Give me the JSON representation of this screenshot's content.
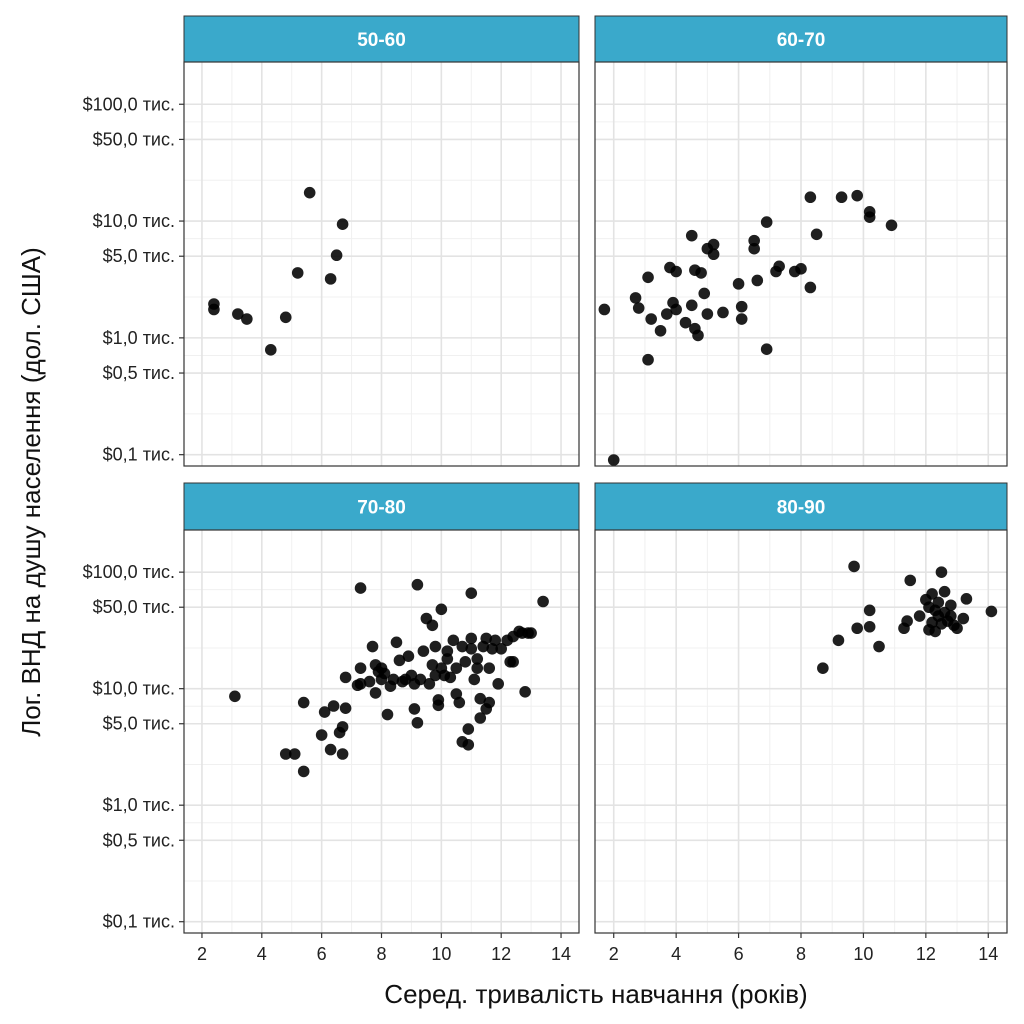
{
  "chart_data": {
    "type": "scatter",
    "xlabel": "Серед. тривалість навчання (років)",
    "ylabel": "Лог. ВНД на душу населення (дол. США)",
    "x_scale": "linear",
    "y_scale": "log10",
    "xlim": [
      1.4,
      14.6
    ],
    "ylim": [
      80,
      230000
    ],
    "x_ticks": [
      2,
      4,
      6,
      8,
      10,
      12,
      14
    ],
    "x_tick_labels": [
      "2",
      "4",
      "6",
      "8",
      "10",
      "12",
      "14"
    ],
    "y_ticks": [
      100,
      500,
      1000,
      5000,
      10000,
      50000,
      100000
    ],
    "y_tick_labels": [
      "$0,1 тис.",
      "$0,5 тис.",
      "$1,0 тис.",
      "$5,0 тис.",
      "$10,0 тис.",
      "$50,0 тис.",
      "$100,0 тис."
    ],
    "grid": true,
    "facets": [
      {
        "label": "50-60",
        "points": [
          [
            2.4,
            1950
          ],
          [
            2.4,
            1750
          ],
          [
            3.2,
            1600
          ],
          [
            3.5,
            1450
          ],
          [
            4.3,
            790
          ],
          [
            4.8,
            1500
          ],
          [
            5.2,
            3600
          ],
          [
            5.6,
            17500
          ],
          [
            6.3,
            3200
          ],
          [
            6.5,
            5100
          ],
          [
            6.7,
            9400
          ]
        ]
      },
      {
        "label": "60-70",
        "points": [
          [
            1.7,
            1750
          ],
          [
            2.0,
            90
          ],
          [
            2.7,
            2200
          ],
          [
            2.8,
            1800
          ],
          [
            3.1,
            3300
          ],
          [
            3.1,
            650
          ],
          [
            3.2,
            1450
          ],
          [
            3.5,
            1150
          ],
          [
            3.7,
            1600
          ],
          [
            3.8,
            4000
          ],
          [
            3.9,
            2000
          ],
          [
            4.0,
            1750
          ],
          [
            4.0,
            3700
          ],
          [
            4.3,
            1350
          ],
          [
            4.5,
            7500
          ],
          [
            4.5,
            1900
          ],
          [
            4.6,
            3800
          ],
          [
            4.6,
            1200
          ],
          [
            4.7,
            1050
          ],
          [
            4.8,
            3600
          ],
          [
            4.9,
            2400
          ],
          [
            5.0,
            1600
          ],
          [
            5.0,
            5800
          ],
          [
            5.2,
            6300
          ],
          [
            5.2,
            5200
          ],
          [
            5.5,
            1650
          ],
          [
            6.0,
            2900
          ],
          [
            6.1,
            1850
          ],
          [
            6.1,
            1450
          ],
          [
            6.5,
            5800
          ],
          [
            6.5,
            6800
          ],
          [
            6.6,
            3100
          ],
          [
            6.9,
            800
          ],
          [
            6.9,
            9800
          ],
          [
            7.2,
            3700
          ],
          [
            7.3,
            4100
          ],
          [
            7.8,
            3700
          ],
          [
            8.0,
            3900
          ],
          [
            8.3,
            2700
          ],
          [
            8.3,
            16000
          ],
          [
            8.5,
            7700
          ],
          [
            9.3,
            16000
          ],
          [
            9.8,
            16500
          ],
          [
            10.2,
            12000
          ],
          [
            10.2,
            10800
          ],
          [
            10.9,
            9200
          ]
        ]
      },
      {
        "label": "70-80",
        "points": [
          [
            3.1,
            8600
          ],
          [
            4.8,
            2750
          ],
          [
            5.1,
            2750
          ],
          [
            5.4,
            7600
          ],
          [
            5.4,
            1950
          ],
          [
            6.0,
            4000
          ],
          [
            6.1,
            6300
          ],
          [
            6.3,
            3000
          ],
          [
            6.4,
            7100
          ],
          [
            6.6,
            4200
          ],
          [
            6.7,
            2750
          ],
          [
            6.7,
            4700
          ],
          [
            6.8,
            6800
          ],
          [
            6.8,
            12500
          ],
          [
            7.2,
            10700
          ],
          [
            7.3,
            11000
          ],
          [
            7.3,
            15000
          ],
          [
            7.3,
            73000
          ],
          [
            7.6,
            11500
          ],
          [
            7.7,
            23000
          ],
          [
            7.8,
            9200
          ],
          [
            7.8,
            16000
          ],
          [
            7.9,
            14000
          ],
          [
            8.0,
            12000
          ],
          [
            8.0,
            15000
          ],
          [
            8.1,
            13500
          ],
          [
            8.2,
            6000
          ],
          [
            8.3,
            10500
          ],
          [
            8.4,
            12000
          ],
          [
            8.5,
            25000
          ],
          [
            8.6,
            17500
          ],
          [
            8.7,
            11500
          ],
          [
            8.8,
            12000
          ],
          [
            8.9,
            19000
          ],
          [
            9.0,
            13000
          ],
          [
            9.1,
            6700
          ],
          [
            9.1,
            11000
          ],
          [
            9.2,
            5100
          ],
          [
            9.2,
            78000
          ],
          [
            9.3,
            12000
          ],
          [
            9.4,
            21000
          ],
          [
            9.5,
            40000
          ],
          [
            9.6,
            11000
          ],
          [
            9.7,
            16000
          ],
          [
            9.7,
            35000
          ],
          [
            9.8,
            13000
          ],
          [
            9.8,
            23000
          ],
          [
            9.9,
            8000
          ],
          [
            9.9,
            7200
          ],
          [
            10.0,
            48000
          ],
          [
            10.0,
            15000
          ],
          [
            10.1,
            13000
          ],
          [
            10.2,
            18000
          ],
          [
            10.2,
            21000
          ],
          [
            10.3,
            12500
          ],
          [
            10.4,
            26000
          ],
          [
            10.5,
            9000
          ],
          [
            10.5,
            15000
          ],
          [
            10.6,
            7600
          ],
          [
            10.7,
            23000
          ],
          [
            10.7,
            3500
          ],
          [
            10.8,
            17000
          ],
          [
            10.9,
            3300
          ],
          [
            10.9,
            4500
          ],
          [
            11.0,
            66000
          ],
          [
            11.0,
            27000
          ],
          [
            11.0,
            22000
          ],
          [
            11.1,
            12000
          ],
          [
            11.2,
            18000
          ],
          [
            11.2,
            15000
          ],
          [
            11.3,
            5600
          ],
          [
            11.3,
            8200
          ],
          [
            11.4,
            23000
          ],
          [
            11.5,
            6700
          ],
          [
            11.5,
            27000
          ],
          [
            11.6,
            7600
          ],
          [
            11.6,
            15000
          ],
          [
            11.7,
            22000
          ],
          [
            11.8,
            26000
          ],
          [
            11.9,
            11000
          ],
          [
            12.0,
            22000
          ],
          [
            12.2,
            26000
          ],
          [
            12.3,
            17000
          ],
          [
            12.4,
            28000
          ],
          [
            12.4,
            17000
          ],
          [
            12.6,
            31000
          ],
          [
            12.7,
            30000
          ],
          [
            12.8,
            9400
          ],
          [
            12.9,
            30000
          ],
          [
            13.0,
            30000
          ],
          [
            13.4,
            56000
          ]
        ]
      },
      {
        "label": "80-90",
        "points": [
          [
            8.7,
            15000
          ],
          [
            9.2,
            26000
          ],
          [
            9.7,
            112000
          ],
          [
            9.8,
            33000
          ],
          [
            10.2,
            47000
          ],
          [
            10.2,
            34000
          ],
          [
            10.5,
            23000
          ],
          [
            11.3,
            33000
          ],
          [
            11.4,
            38000
          ],
          [
            11.5,
            85000
          ],
          [
            11.8,
            42000
          ],
          [
            12.0,
            58000
          ],
          [
            12.1,
            32000
          ],
          [
            12.1,
            50000
          ],
          [
            12.2,
            65000
          ],
          [
            12.2,
            37000
          ],
          [
            12.3,
            31000
          ],
          [
            12.3,
            47000
          ],
          [
            12.4,
            55000
          ],
          [
            12.4,
            42000
          ],
          [
            12.5,
            100000
          ],
          [
            12.5,
            36000
          ],
          [
            12.6,
            68000
          ],
          [
            12.6,
            45000
          ],
          [
            12.7,
            38000
          ],
          [
            12.8,
            52000
          ],
          [
            12.8,
            42000
          ],
          [
            12.9,
            35000
          ],
          [
            13.0,
            33000
          ],
          [
            13.2,
            40000
          ],
          [
            13.3,
            59000
          ],
          [
            14.1,
            46000
          ]
        ]
      }
    ]
  }
}
